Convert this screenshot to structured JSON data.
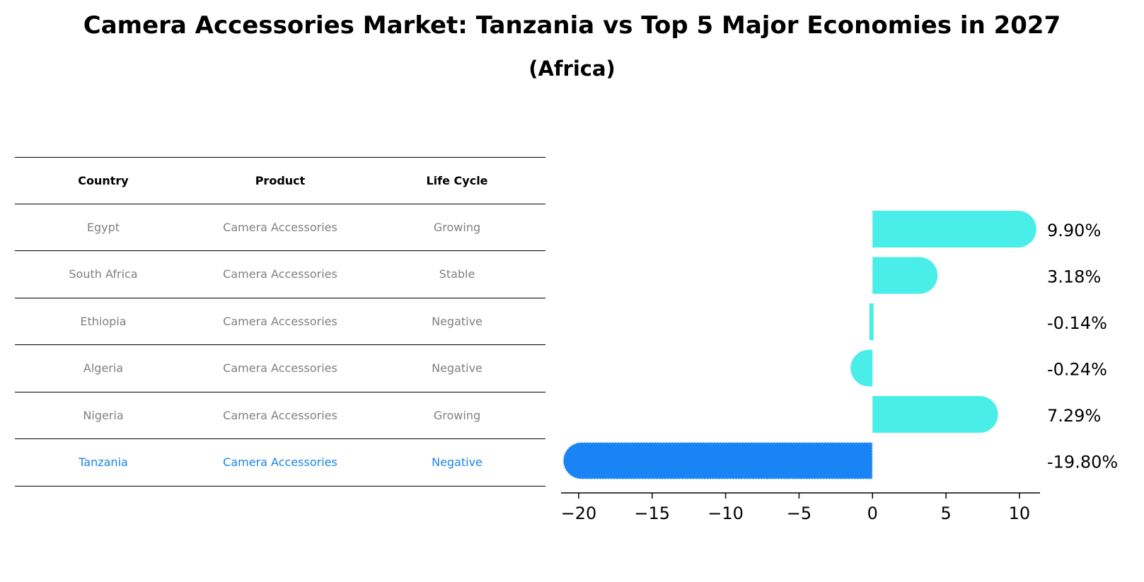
{
  "title": "Camera Accessories Market: Tanzania vs Top 5 Major Economies in 2027",
  "subtitle": "(Africa)",
  "colors": {
    "bar": "#4aeee9",
    "highlight": "#1a84f5",
    "highlight_text": "#1a84e8",
    "muted_text": "#808080"
  },
  "table": {
    "headers": [
      "Country",
      "Product",
      "Life Cycle"
    ],
    "rows": [
      {
        "country": "Egypt",
        "product": "Camera Accessories",
        "life_cycle": "Growing"
      },
      {
        "country": "South Africa",
        "product": "Camera Accessories",
        "life_cycle": "Stable"
      },
      {
        "country": "Ethiopia",
        "product": "Camera Accessories",
        "life_cycle": "Negative"
      },
      {
        "country": "Algeria",
        "product": "Camera Accessories",
        "life_cycle": "Negative"
      },
      {
        "country": "Nigeria",
        "product": "Camera Accessories",
        "life_cycle": "Growing"
      },
      {
        "country": "Tanzania",
        "product": "Camera Accessories",
        "life_cycle": "Negative"
      }
    ]
  },
  "chart_data": {
    "type": "bar",
    "orientation": "horizontal",
    "categories": [
      "Egypt",
      "South Africa",
      "Ethiopia",
      "Algeria",
      "Nigeria",
      "Tanzania"
    ],
    "values": [
      9.9,
      3.18,
      -0.14,
      -0.24,
      7.29,
      -19.8
    ],
    "value_labels": [
      "9.90%",
      "3.18%",
      "-0.14%",
      "-0.24%",
      "7.29%",
      "-19.80%"
    ],
    "highlight_category": "Tanzania",
    "xlim": [
      -21.2,
      11.4
    ],
    "xticks": [
      -20,
      -15,
      -10,
      -5,
      0,
      5,
      10
    ],
    "xtick_labels": [
      "−20",
      "−15",
      "−10",
      "−5",
      "0",
      "5",
      "10"
    ],
    "grid": false
  }
}
